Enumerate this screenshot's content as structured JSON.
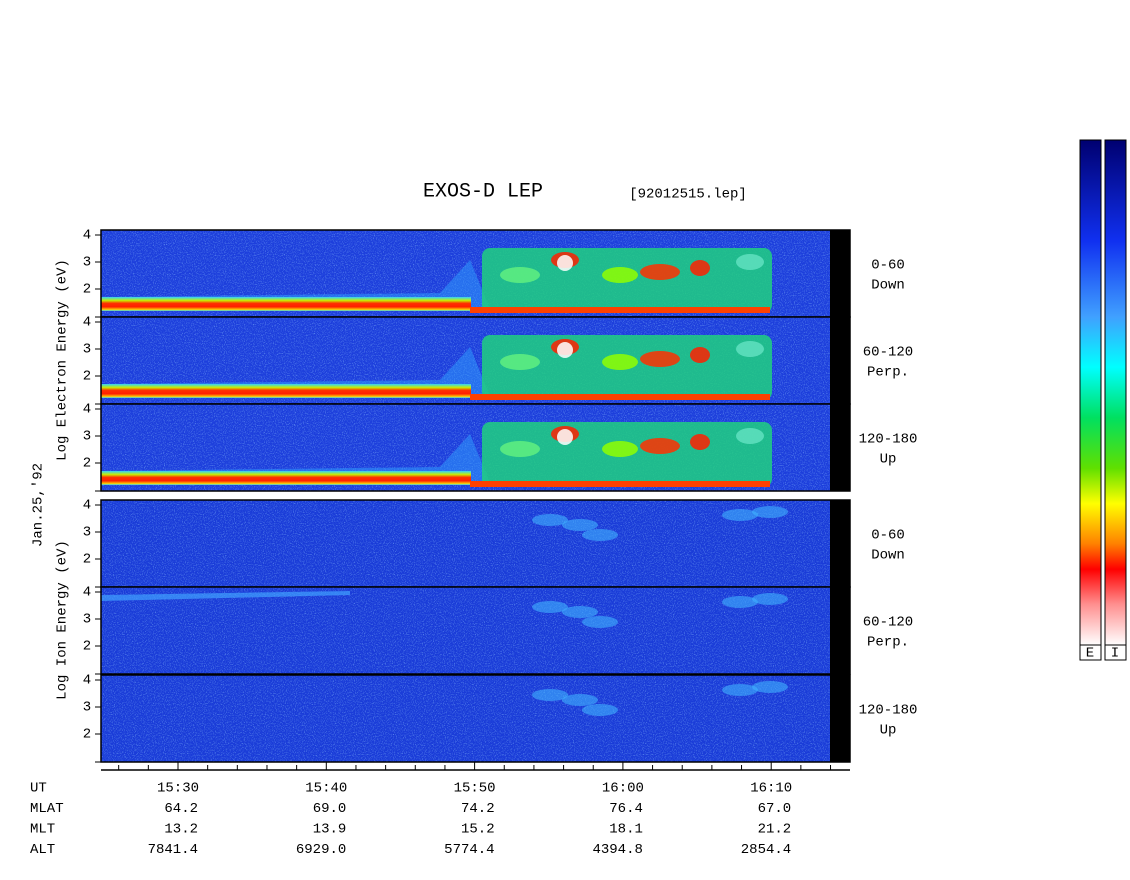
{
  "title": "EXOS-D LEP",
  "file": "[92012515.lep]",
  "date": "Jan.25,'92",
  "electron_axis_label": "Log Electron Energy (eV)",
  "ion_axis_label": "Log Ion Energy (eV)",
  "yticks": [
    2,
    3,
    4
  ],
  "panels": [
    {
      "angle": "0-60",
      "direction": "Down"
    },
    {
      "angle": "60-120",
      "direction": "Perp."
    },
    {
      "angle": "120-180",
      "direction": "Up"
    },
    {
      "angle": "0-60",
      "direction": "Down"
    },
    {
      "angle": "60-120",
      "direction": "Perp."
    },
    {
      "angle": "120-180",
      "direction": "Up"
    }
  ],
  "orbit_table": {
    "row_labels": [
      "UT",
      "MLAT",
      "MLT",
      "ALT"
    ],
    "columns": [
      [
        "15:30",
        "64.2",
        "13.2",
        "7841.4"
      ],
      [
        "15:40",
        "69.0",
        "13.9",
        "6929.0"
      ],
      [
        "15:50",
        "74.2",
        "15.2",
        "5774.4"
      ],
      [
        "16:00",
        "76.4",
        "18.1",
        "4394.8"
      ],
      [
        "16:10",
        "67.0",
        "21.2",
        "2854.4"
      ]
    ]
  },
  "colorbar_labels": [
    "E",
    "I"
  ]
}
